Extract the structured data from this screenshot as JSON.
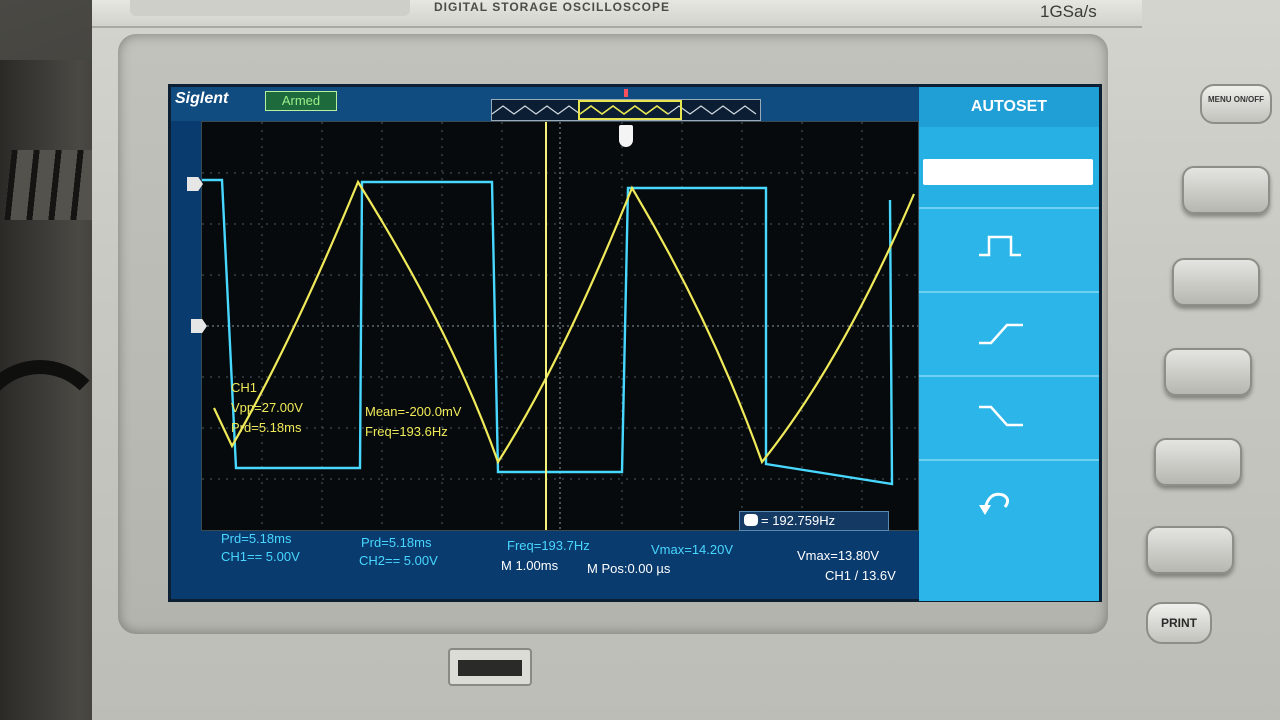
{
  "device": {
    "model_label": "DIGITAL STORAGE OSCILLOSCOPE",
    "sample_rate": "1GSa/s",
    "menu_button": "MENU ON/OFF",
    "print_button": "PRINT"
  },
  "screen": {
    "brand": "Siglent",
    "status": "Armed",
    "menu_title": "AUTOSET",
    "menu_items": [
      {
        "icon": "blank"
      },
      {
        "icon": "pulse-icon"
      },
      {
        "icon": "rising-edge-icon"
      },
      {
        "icon": "falling-edge-icon"
      },
      {
        "icon": "undo-icon"
      }
    ]
  },
  "measurements": {
    "ch1_label": "CH1",
    "vpp": "Vpp=27.00V",
    "prd": "Prd=5.18ms",
    "mean": "Mean=-200.0mV",
    "freq": "Freq=193.6Hz",
    "counter": "= 192.759Hz"
  },
  "bottom": {
    "prd1": "Prd=5.18ms",
    "ch1_scale": "CH1== 5.00V",
    "prd2": "Prd=5.18ms",
    "ch2_scale": "CH2== 5.00V",
    "freq": "Freq=193.7Hz",
    "timebase": "M 1.00ms",
    "vmax1": "Vmax=14.20V",
    "mpos": "M Pos:0.00 µs",
    "vmax2": "Vmax=13.80V",
    "trigger": "CH1 / 13.6V"
  },
  "colors": {
    "ch1": "#f0ea5a",
    "ch2": "#48d7ff",
    "menu": "#27b0e4"
  }
}
